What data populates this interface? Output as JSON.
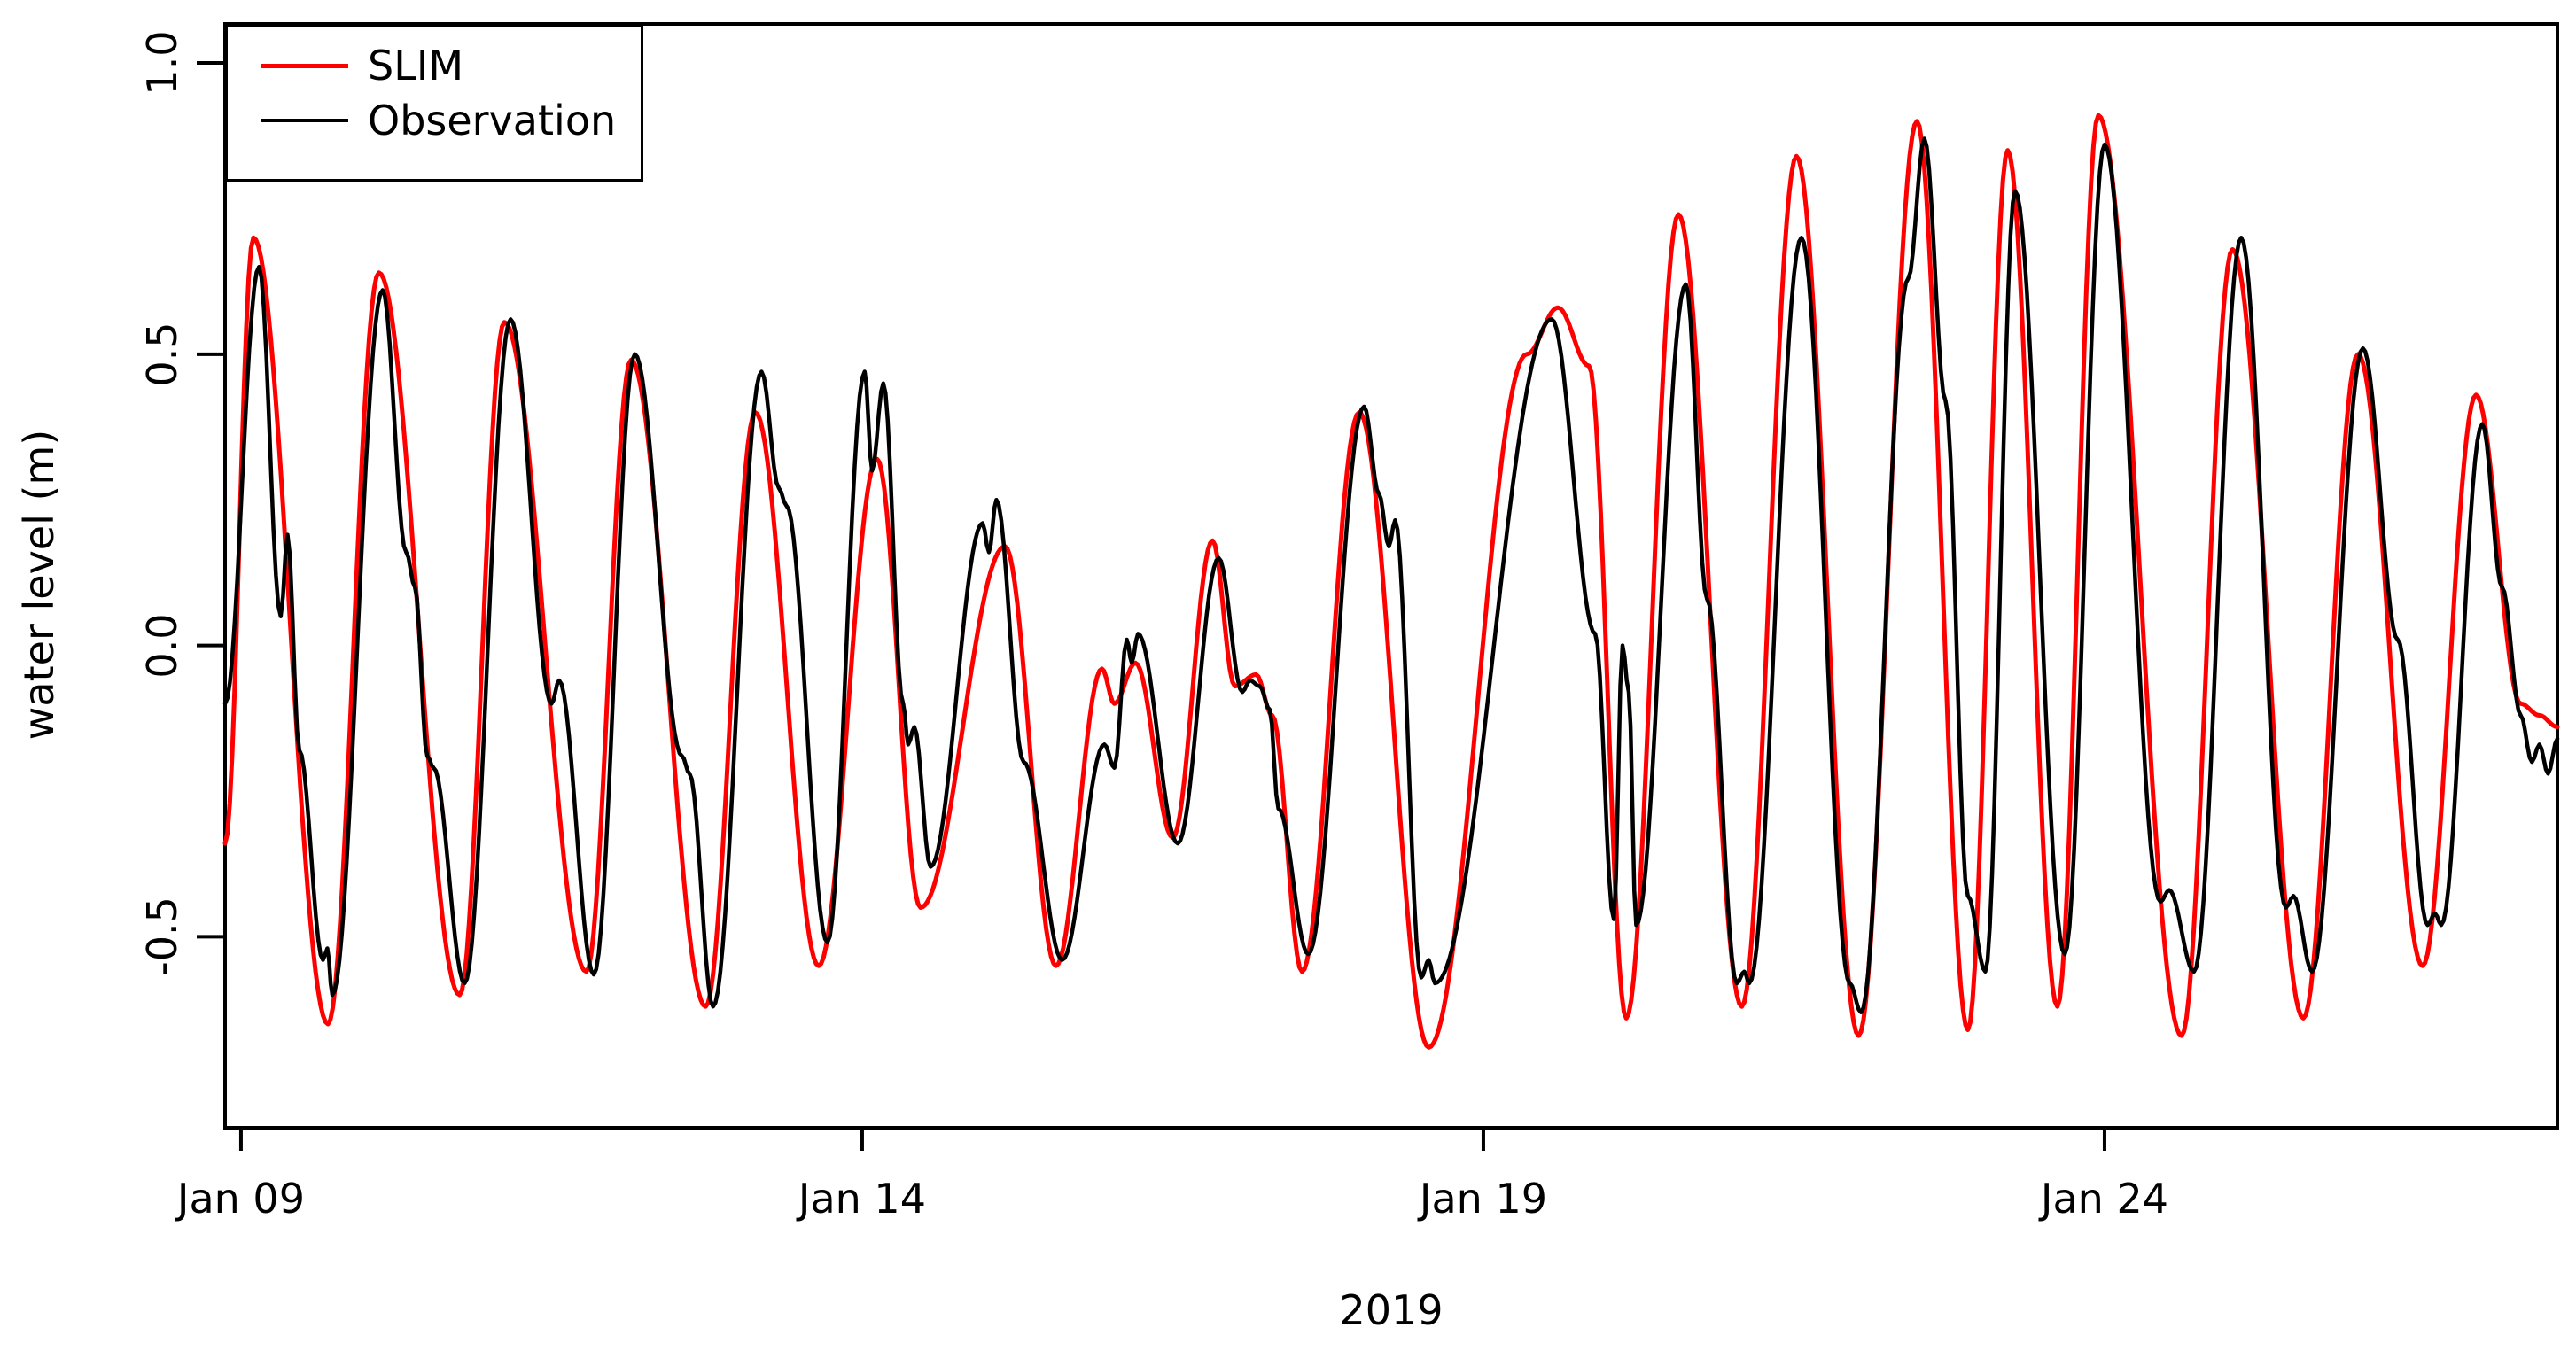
{
  "axes": {
    "ylabel": "water level (m)",
    "xlabel": "2019",
    "yticks": [
      {
        "value": 1.0,
        "label": "1.0"
      },
      {
        "value": 0.5,
        "label": "0.5"
      },
      {
        "value": 0.0,
        "label": "0.0"
      },
      {
        "value": -0.5,
        "label": "-0.5"
      }
    ],
    "xticks": [
      {
        "t": 0,
        "label": "Jan 09"
      },
      {
        "t": 5,
        "label": "Jan 14"
      },
      {
        "t": 10,
        "label": "Jan 19"
      },
      {
        "t": 15,
        "label": "Jan 24"
      }
    ]
  },
  "legend": [
    {
      "name": "SLIM",
      "color": "#ff0000"
    },
    {
      "name": "Observation",
      "color": "#000000"
    }
  ],
  "chart_data": {
    "type": "line",
    "title": "",
    "xlabel": "2019",
    "ylabel": "water level (m)",
    "x_unit": "days since 2019-01-09 00:00",
    "y_unit": "m",
    "xlim": [
      -0.128,
      18.645
    ],
    "ylim": [
      -0.828,
      1.067
    ],
    "grid": false,
    "legend_position": "topleft",
    "interpolation": "cosine",
    "series": [
      {
        "name": "SLIM",
        "color": "#ff0000",
        "line_width": 5,
        "points": [
          [
            -0.128,
            -0.34
          ],
          [
            0.1,
            0.7
          ],
          [
            0.7,
            -0.65
          ],
          [
            1.11,
            0.64
          ],
          [
            1.76,
            -0.6
          ],
          [
            2.12,
            0.555
          ],
          [
            2.78,
            -0.56
          ],
          [
            3.14,
            0.49
          ],
          [
            3.74,
            -0.62
          ],
          [
            4.14,
            0.4
          ],
          [
            4.65,
            -0.55
          ],
          [
            5.12,
            0.32
          ],
          [
            5.47,
            -0.45
          ],
          [
            6.15,
            0.17
          ],
          [
            6.56,
            -0.55
          ],
          [
            6.93,
            -0.04
          ],
          [
            7.03,
            -0.1
          ],
          [
            7.2,
            -0.03
          ],
          [
            7.5,
            -0.33
          ],
          [
            7.82,
            0.18
          ],
          [
            8.0,
            -0.07
          ],
          [
            8.17,
            -0.05
          ],
          [
            8.3,
            -0.12
          ],
          [
            8.54,
            -0.56
          ],
          [
            9.0,
            0.4
          ],
          [
            9.56,
            -0.69
          ],
          [
            10.35,
            0.5
          ],
          [
            10.6,
            0.58
          ],
          [
            10.85,
            0.48
          ],
          [
            11.15,
            -0.64
          ],
          [
            11.57,
            0.74
          ],
          [
            12.08,
            -0.62
          ],
          [
            12.52,
            0.84
          ],
          [
            13.02,
            -0.67
          ],
          [
            13.49,
            0.9
          ],
          [
            13.9,
            -0.66
          ],
          [
            14.22,
            0.85
          ],
          [
            14.62,
            -0.62
          ],
          [
            14.95,
            0.91
          ],
          [
            15.62,
            -0.67
          ],
          [
            16.03,
            0.68
          ],
          [
            16.6,
            -0.64
          ],
          [
            17.04,
            0.5
          ],
          [
            17.56,
            -0.55
          ],
          [
            17.99,
            0.43
          ],
          [
            18.35,
            -0.1
          ],
          [
            18.5,
            -0.12
          ],
          [
            18.645,
            -0.14
          ]
        ]
      },
      {
        "name": "Observation",
        "color": "#000000",
        "line_width": 4.5,
        "points": [
          [
            -0.128,
            -0.1
          ],
          [
            0.145,
            0.65
          ],
          [
            0.32,
            0.05
          ],
          [
            0.375,
            0.19
          ],
          [
            0.47,
            -0.18
          ],
          [
            0.66,
            -0.54
          ],
          [
            0.695,
            -0.52
          ],
          [
            0.735,
            -0.6
          ],
          [
            1.14,
            0.61
          ],
          [
            1.33,
            0.16
          ],
          [
            1.4,
            0.1
          ],
          [
            1.5,
            -0.19
          ],
          [
            1.55,
            -0.21
          ],
          [
            1.8,
            -0.58
          ],
          [
            2.17,
            0.56
          ],
          [
            2.5,
            -0.1
          ],
          [
            2.56,
            -0.06
          ],
          [
            2.84,
            -0.565
          ],
          [
            3.17,
            0.5
          ],
          [
            3.55,
            -0.19
          ],
          [
            3.61,
            -0.22
          ],
          [
            3.8,
            -0.62
          ],
          [
            4.19,
            0.47
          ],
          [
            4.33,
            0.27
          ],
          [
            4.39,
            0.24
          ],
          [
            4.72,
            -0.51
          ],
          [
            5.02,
            0.47
          ],
          [
            5.08,
            0.3
          ],
          [
            5.17,
            0.45
          ],
          [
            5.33,
            -0.1
          ],
          [
            5.37,
            -0.17
          ],
          [
            5.42,
            -0.14
          ],
          [
            5.55,
            -0.38
          ],
          [
            5.97,
            0.21
          ],
          [
            6.02,
            0.16
          ],
          [
            6.08,
            0.25
          ],
          [
            6.3,
            -0.2
          ],
          [
            6.61,
            -0.54
          ],
          [
            6.95,
            -0.17
          ],
          [
            7.03,
            -0.21
          ],
          [
            7.13,
            0.01
          ],
          [
            7.17,
            -0.03
          ],
          [
            7.22,
            0.02
          ],
          [
            7.54,
            -0.34
          ],
          [
            7.87,
            0.15
          ],
          [
            8.06,
            -0.08
          ],
          [
            8.12,
            -0.06
          ],
          [
            8.2,
            -0.07
          ],
          [
            8.28,
            -0.11
          ],
          [
            8.35,
            -0.28
          ],
          [
            8.59,
            -0.53
          ],
          [
            9.04,
            0.41
          ],
          [
            9.16,
            0.26
          ],
          [
            9.24,
            0.17
          ],
          [
            9.29,
            0.215
          ],
          [
            9.5,
            -0.57
          ],
          [
            9.56,
            -0.54
          ],
          [
            9.61,
            -0.58
          ],
          [
            10.55,
            0.56
          ],
          [
            10.9,
            0.02
          ],
          [
            11.05,
            -0.47
          ],
          [
            11.12,
            0.0
          ],
          [
            11.17,
            -0.08
          ],
          [
            11.23,
            -0.48
          ],
          [
            11.63,
            0.62
          ],
          [
            11.8,
            0.08
          ],
          [
            12.04,
            -0.58
          ],
          [
            12.1,
            -0.56
          ],
          [
            12.14,
            -0.58
          ],
          [
            12.56,
            0.7
          ],
          [
            12.95,
            -0.58
          ],
          [
            13.04,
            -0.63
          ],
          [
            13.42,
            0.63
          ],
          [
            13.55,
            0.87
          ],
          [
            13.72,
            0.42
          ],
          [
            13.9,
            -0.43
          ],
          [
            14.04,
            -0.56
          ],
          [
            14.28,
            0.78
          ],
          [
            14.68,
            -0.53
          ],
          [
            15.0,
            0.86
          ],
          [
            15.45,
            -0.44
          ],
          [
            15.52,
            -0.42
          ],
          [
            15.72,
            -0.56
          ],
          [
            16.1,
            0.7
          ],
          [
            16.46,
            -0.45
          ],
          [
            16.52,
            -0.43
          ],
          [
            16.67,
            -0.56
          ],
          [
            17.08,
            0.51
          ],
          [
            17.36,
            0.01
          ],
          [
            17.6,
            -0.48
          ],
          [
            17.66,
            -0.46
          ],
          [
            17.71,
            -0.48
          ],
          [
            18.04,
            0.38
          ],
          [
            18.2,
            0.1
          ],
          [
            18.35,
            -0.12
          ],
          [
            18.44,
            -0.2
          ],
          [
            18.5,
            -0.17
          ],
          [
            18.57,
            -0.22
          ],
          [
            18.645,
            -0.16
          ]
        ]
      }
    ]
  }
}
